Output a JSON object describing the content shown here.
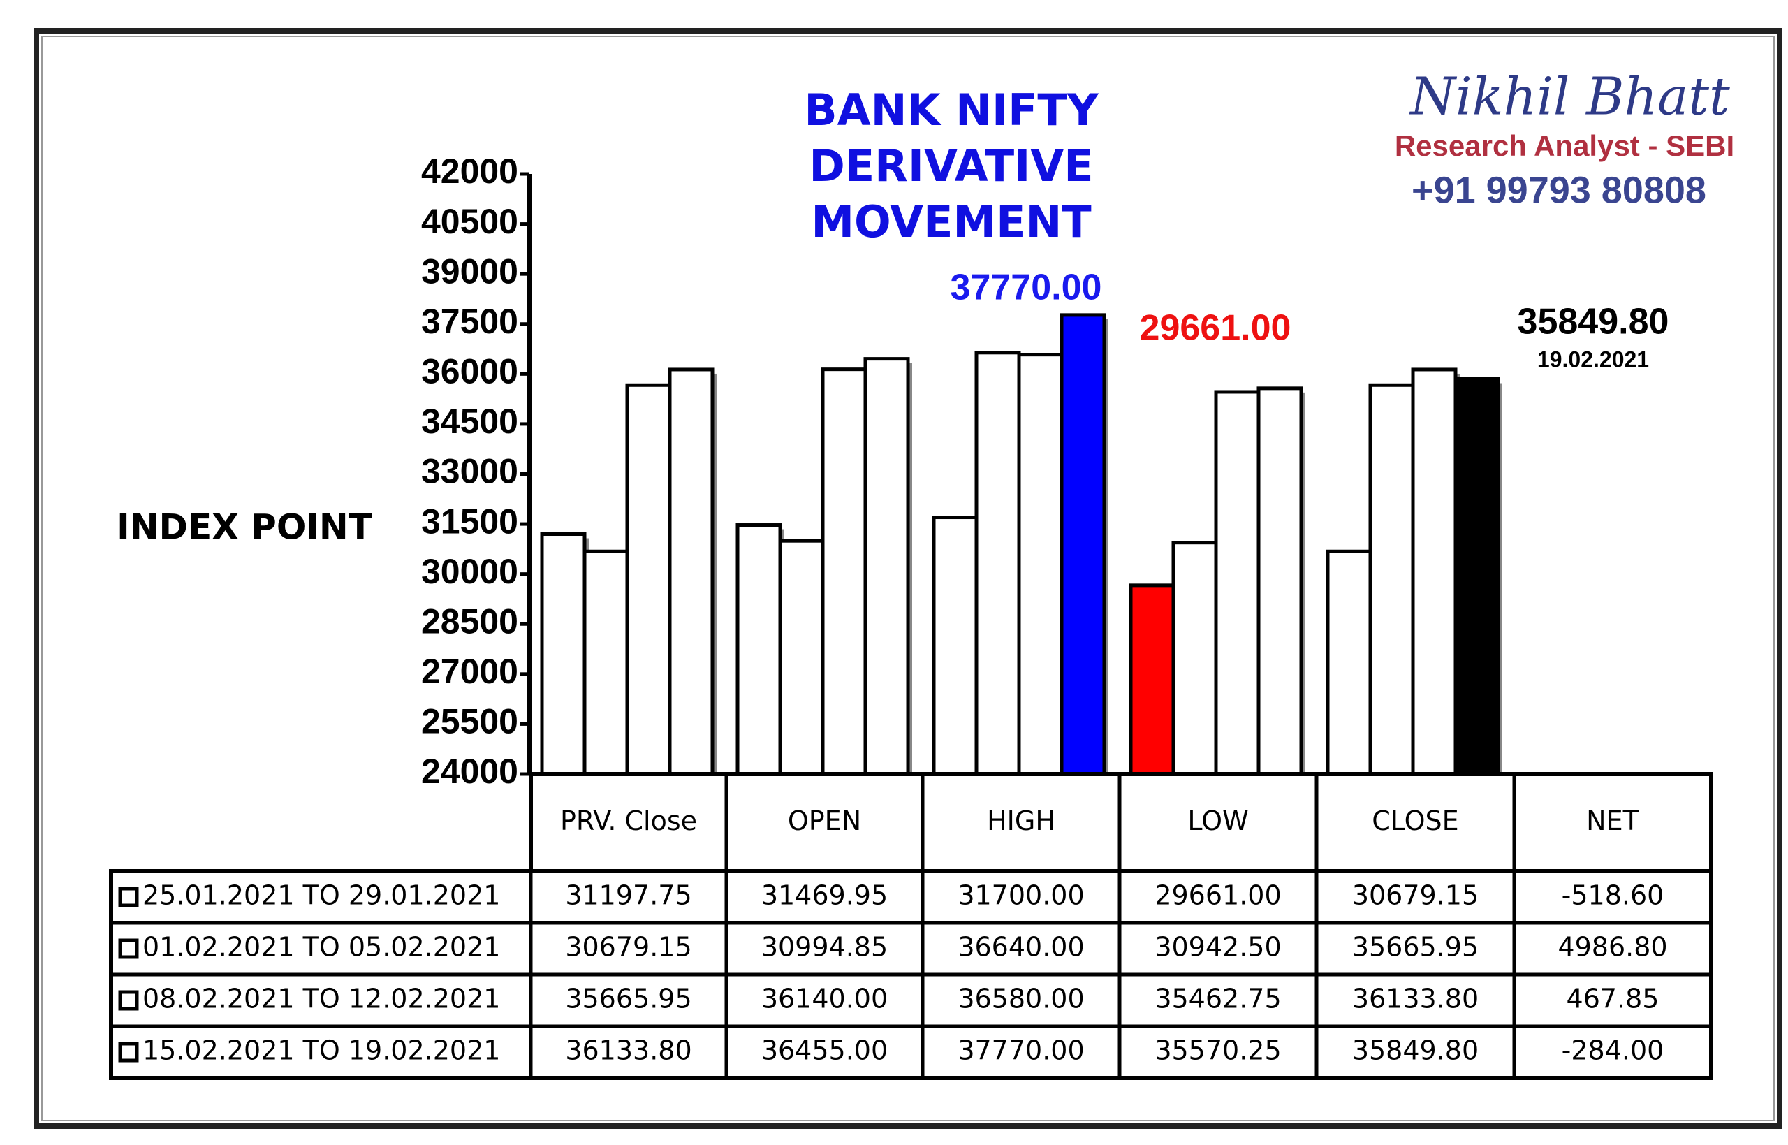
{
  "chart_data": {
    "type": "bar",
    "title": "BANK NIFTY DERIVATIVE MOVEMENT",
    "y_label": "INDEX POINT",
    "ylim": [
      24000,
      42000
    ],
    "yticks": [
      24000,
      25500,
      27000,
      28500,
      30000,
      31500,
      33000,
      34500,
      36000,
      37500,
      39000,
      40500,
      42000
    ],
    "categories": [
      "PRV. Close",
      "OPEN",
      "HIGH",
      "LOW",
      "CLOSE",
      "NET"
    ],
    "bar_categories": 5,
    "series": [
      {
        "name": "25.01.2021 TO 29.01.2021",
        "colors": [
          "#ffffff",
          "#ffffff",
          "#ffffff",
          "#ff0000",
          "#ffffff",
          "#ffffff"
        ],
        "values": [
          31197.75,
          31469.95,
          31700,
          29661,
          30679.15,
          -518.6
        ],
        "value_labels": [
          "31197.75",
          "31469.95",
          "31700.00",
          "29661.00",
          "30679.15",
          "-518.60"
        ]
      },
      {
        "name": "01.02.2021 TO 05.02.2021",
        "colors": [
          "#ffffff",
          "#ffffff",
          "#ffffff",
          "#ffffff",
          "#ffffff",
          "#ffffff"
        ],
        "values": [
          30679.15,
          30994.85,
          36640,
          30942.5,
          35665.95,
          4986.8
        ],
        "value_labels": [
          "30679.15",
          "30994.85",
          "36640.00",
          "30942.50",
          "35665.95",
          "4986.80"
        ]
      },
      {
        "name": "08.02.2021 TO 12.02.2021",
        "colors": [
          "#ffffff",
          "#ffffff",
          "#ffffff",
          "#ffffff",
          "#ffffff",
          "#ffffff"
        ],
        "values": [
          35665.95,
          36140,
          36580,
          35462.75,
          36133.8,
          467.85
        ],
        "value_labels": [
          "35665.95",
          "36140.00",
          "36580.00",
          "35462.75",
          "36133.80",
          "467.85"
        ]
      },
      {
        "name": "15.02.2021 TO 19.02.2021",
        "colors": [
          "#ffffff",
          "#ffffff",
          "#0000ff",
          "#ffffff",
          "#000000",
          "#ffffff"
        ],
        "values": [
          36133.8,
          36455,
          37770,
          35570.25,
          35849.8,
          -284
        ],
        "value_labels": [
          "36133.80",
          "36455.00",
          "37770.00",
          "35570.25",
          "35849.80",
          "-284.00"
        ]
      }
    ],
    "annotations": [
      "37770.00",
      "29661.00",
      "35849.80",
      "19.02.2021"
    ]
  },
  "branding": {
    "name": "Nikhil Bhatt",
    "role": "Research Analyst - SEBI",
    "phone": "+91 99793 80808"
  }
}
